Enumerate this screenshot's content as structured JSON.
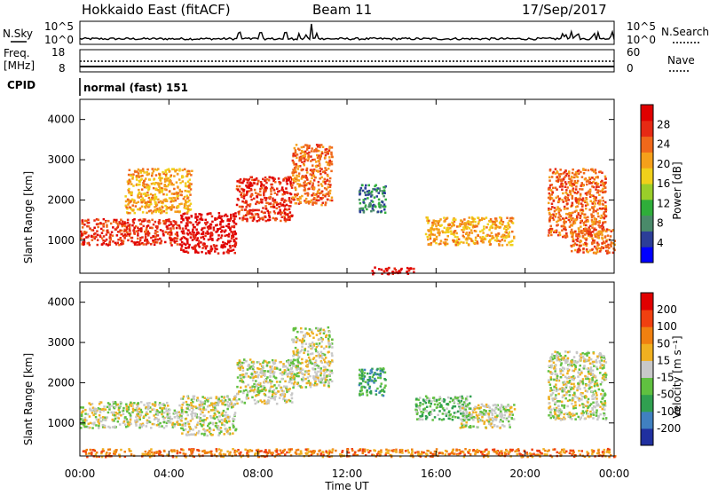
{
  "header": {
    "radar": "Hokkaido East (fitACF)",
    "beam": "Beam 11",
    "date": "17/Sep/2017"
  },
  "top_panels": {
    "nsky_label": "N.Sky",
    "nsearch_label": "N.Search",
    "noise_ticks": [
      "10^5",
      "10^0"
    ],
    "freq_label_1": "Freq.",
    "freq_label_2": "[MHz]",
    "freq_ticks": [
      "18",
      "8"
    ],
    "nave_label": "Nave",
    "nave_ticks": [
      "60",
      "0"
    ],
    "cpid_label": "CPID",
    "cpid_value": "normal (fast) 151"
  },
  "colors": {
    "power_scale": [
      "#0000ff",
      "#2c3e98",
      "#4a8a6a",
      "#2fae3a",
      "#9ace2a",
      "#f0d01a",
      "#f5a01a",
      "#f0681a",
      "#e62a14",
      "#e00000"
    ],
    "velocity_scale": [
      "#2030a0",
      "#4080c0",
      "#30a050",
      "#60c040",
      "#c8c8c8",
      "#f0b020",
      "#f08010",
      "#f04010",
      "#e00000"
    ],
    "ground": "#c8c8c8"
  },
  "chart_data": [
    {
      "type": "heatmap",
      "name": "power-panel",
      "xlabel": "",
      "ylabel": "Slant Range [km]",
      "yticks": [
        "1000",
        "2000",
        "3000",
        "4000"
      ],
      "ylim": [
        180,
        4500
      ],
      "xlim": [
        0,
        24
      ],
      "colorbar": {
        "label": "Power [dB]",
        "ticks": [
          "4",
          "8",
          "12",
          "16",
          "20",
          "24",
          "28"
        ]
      },
      "regions": [
        {
          "t0": 0.0,
          "t1": 4.5,
          "r0": 900,
          "r1": 1550,
          "level": 8
        },
        {
          "t0": 4.5,
          "t1": 7.0,
          "r0": 700,
          "r1": 1700,
          "level": 9
        },
        {
          "t0": 7.0,
          "t1": 9.5,
          "r0": 1500,
          "r1": 2600,
          "level": 8
        },
        {
          "t0": 9.5,
          "t1": 11.3,
          "r0": 1900,
          "r1": 3400,
          "level": 7
        },
        {
          "t0": 2.0,
          "t1": 5.0,
          "r0": 1700,
          "r1": 2800,
          "level": 6
        },
        {
          "t0": 12.5,
          "t1": 13.7,
          "r0": 1700,
          "r1": 2400,
          "level": 2
        },
        {
          "t0": 15.5,
          "t1": 19.5,
          "r0": 900,
          "r1": 1600,
          "level": 6
        },
        {
          "t0": 21.0,
          "t1": 23.6,
          "r0": 1100,
          "r1": 2800,
          "level": 7
        },
        {
          "t0": 22.0,
          "t1": 24.0,
          "r0": 700,
          "r1": 1300,
          "level": 7
        },
        {
          "t0": 13.0,
          "t1": 15.0,
          "r0": 180,
          "r1": 350,
          "level": 9
        }
      ]
    },
    {
      "type": "heatmap",
      "name": "velocity-panel",
      "xlabel": "Time UT",
      "ylabel": "Slant Range [km]",
      "xticks": [
        "00:00",
        "04:00",
        "08:00",
        "12:00",
        "16:00",
        "20:00",
        "00:00"
      ],
      "yticks": [
        "1000",
        "2000",
        "3000",
        "4000"
      ],
      "ylim": [
        180,
        4500
      ],
      "xlim": [
        0,
        24
      ],
      "colorbar": {
        "label": "Velocity [m s⁻¹]",
        "ticks": [
          "-200",
          "-100",
          "-50",
          "-15",
          "15",
          "50",
          "100",
          "200"
        ]
      },
      "regions": [
        {
          "t0": 0.0,
          "t1": 4.5,
          "r0": 900,
          "r1": 1550,
          "level": 4
        },
        {
          "t0": 4.5,
          "t1": 7.0,
          "r0": 700,
          "r1": 1700,
          "level": 4
        },
        {
          "t0": 7.0,
          "t1": 9.5,
          "r0": 1500,
          "r1": 2600,
          "level": 4
        },
        {
          "t0": 9.5,
          "t1": 11.3,
          "r0": 1900,
          "r1": 3400,
          "level": 4
        },
        {
          "t0": 12.5,
          "t1": 13.7,
          "r0": 1700,
          "r1": 2400,
          "level": 2
        },
        {
          "t0": 15.0,
          "t1": 17.5,
          "r0": 1100,
          "r1": 1700,
          "level": 3
        },
        {
          "t0": 17.0,
          "t1": 19.5,
          "r0": 900,
          "r1": 1500,
          "level": 4
        },
        {
          "t0": 21.0,
          "t1": 23.6,
          "r0": 1100,
          "r1": 2800,
          "level": 4
        },
        {
          "t0": 0.0,
          "t1": 24.0,
          "r0": 180,
          "r1": 380,
          "level": 6
        }
      ]
    }
  ]
}
